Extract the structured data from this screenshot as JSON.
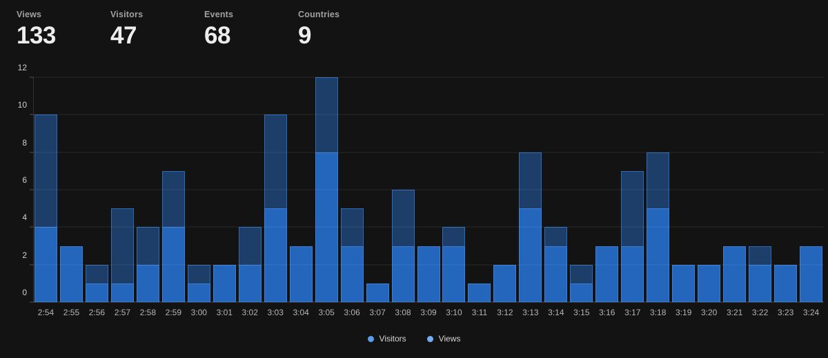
{
  "stats": [
    {
      "label": "Views",
      "value": "133"
    },
    {
      "label": "Visitors",
      "value": "47"
    },
    {
      "label": "Events",
      "value": "68"
    },
    {
      "label": "Countries",
      "value": "9"
    }
  ],
  "legend": [
    {
      "label": "Visitors",
      "dot_color": "#5b9ded"
    },
    {
      "label": "Views",
      "dot_color": "#74aef2"
    }
  ],
  "chart_data": {
    "type": "bar",
    "subtype": "stacked",
    "title": "",
    "xlabel": "",
    "ylabel": "",
    "categories": [
      "2:54",
      "2:55",
      "2:56",
      "2:57",
      "2:58",
      "2:59",
      "3:00",
      "3:01",
      "3:02",
      "3:03",
      "3:04",
      "3:05",
      "3:06",
      "3:07",
      "3:08",
      "3:09",
      "3:10",
      "3:11",
      "3:12",
      "3:13",
      "3:14",
      "3:15",
      "3:16",
      "3:17",
      "3:18",
      "3:19",
      "3:20",
      "3:21",
      "3:22",
      "3:23",
      "3:24"
    ],
    "series": [
      {
        "name": "Visitors",
        "values": [
          4,
          3,
          1,
          1,
          2,
          4,
          1,
          2,
          2,
          5,
          3,
          8,
          3,
          1,
          3,
          3,
          3,
          1,
          2,
          5,
          3,
          1,
          3,
          3,
          5,
          2,
          2,
          3,
          2,
          2,
          3
        ]
      },
      {
        "name": "Views",
        "values": [
          10,
          3,
          2,
          5,
          4,
          7,
          2,
          2,
          4,
          10,
          3,
          12,
          5,
          1,
          6,
          3,
          4,
          1,
          2,
          8,
          4,
          2,
          3,
          7,
          8,
          2,
          2,
          3,
          3,
          2,
          3
        ]
      }
    ],
    "render_note": "total bar height = Views; bright lower segment = Visitors; dark upper segment = Views minus Visitors",
    "ylim": [
      0,
      12
    ],
    "yticks": [
      0,
      2,
      4,
      6,
      8,
      10,
      12
    ],
    "grid": "horizontal",
    "legend_position": "bottom"
  },
  "colors": {
    "background": "#131313",
    "visitors_fill": "#2566bd",
    "visitors_stroke": "#3b7fd9",
    "views_fill": "#1d3e68",
    "views_stroke": "#2e6ab8",
    "grid_line": "rgba(255,255,255,0.09)",
    "baseline": "rgba(255,255,255,0.24)",
    "axis_line": "rgba(255,255,255,0.14)",
    "tick_mark": "rgba(255,255,255,0.28)",
    "y_tick_text": "#cfcfcf",
    "x_tick_text": "#b5b5b5",
    "stat_label": "#a0a0a0",
    "stat_value": "#ededed",
    "legend_text": "#d6d6d6"
  }
}
